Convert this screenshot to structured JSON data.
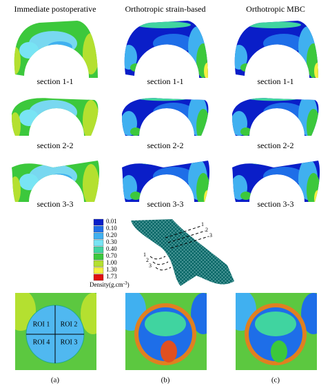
{
  "columns": [
    "Immediate postoperative",
    "Orthotropic strain-based",
    "Orthotropic MBC"
  ],
  "sections": [
    [
      "section 1-1",
      "section 1-1",
      "section 1-1"
    ],
    [
      "section 2-2",
      "section 2-2",
      "section 2-2"
    ],
    [
      "section 3-3",
      "section 3-3",
      "section 3-3"
    ]
  ],
  "legend": {
    "levels": [
      {
        "label": "0.01",
        "color": "#0a1ec8"
      },
      {
        "label": "0.10",
        "color": "#1e6ee8"
      },
      {
        "label": "0.20",
        "color": "#40b0f0"
      },
      {
        "label": "0.30",
        "color": "#78e4f4"
      },
      {
        "label": "0.40",
        "color": "#40d4a0"
      },
      {
        "label": "0.70",
        "color": "#3cc83c"
      },
      {
        "label": "1.00",
        "color": "#b4e030"
      },
      {
        "label": "1.30",
        "color": "#f4f040"
      },
      {
        "label": "1.73",
        "color": "#e01010"
      }
    ],
    "title": [
      "Density(g.cm",
      "-3",
      ")"
    ]
  },
  "mesh_labels": {
    "right": [
      "1",
      "2",
      "3"
    ],
    "left": [
      "1",
      "2",
      "3"
    ]
  },
  "roi": [
    "ROI 1",
    "ROI 2",
    "ROI 4",
    "ROI 3"
  ],
  "panels": [
    "(a)",
    "(b)",
    "(c)"
  ]
}
